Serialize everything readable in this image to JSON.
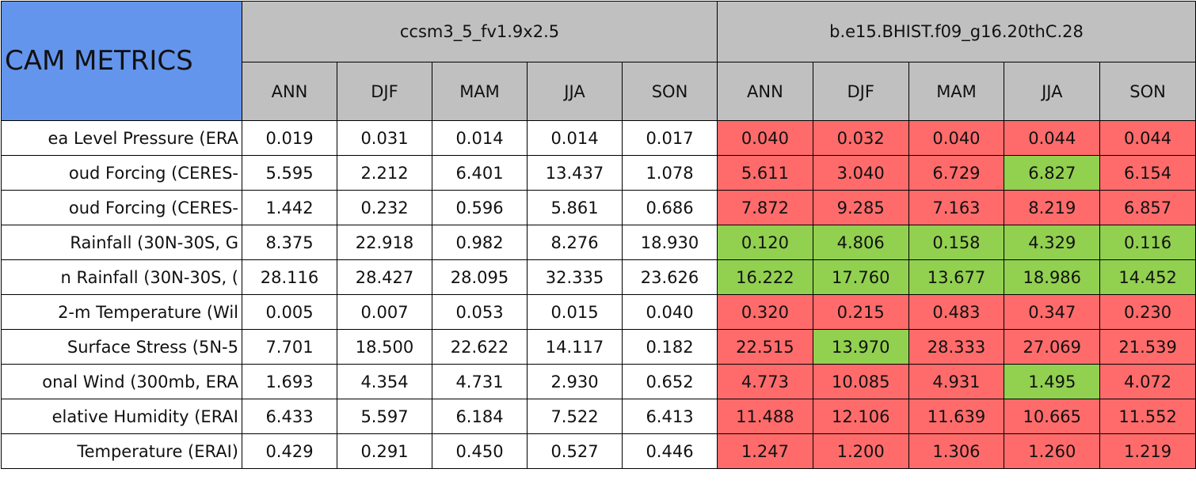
{
  "header": {
    "title": "CAM METRICS",
    "groups": [
      "ccsm3_5_fv1.9x2.5",
      "b.e15.BHIST.f09_g16.20thC.28"
    ],
    "seasons": [
      "ANN",
      "DJF",
      "MAM",
      "JJA",
      "SON"
    ]
  },
  "colors": {
    "title_fill": "#6495ed",
    "header_fill": "#c0c0c0",
    "plain_fill": "#ffffff",
    "red": "#ff6b6b",
    "green": "#92d050"
  },
  "table": {
    "rows": [
      {
        "label": "ea Level Pressure (ERA",
        "cells": [
          "0.019",
          "0.031",
          "0.014",
          "0.014",
          "0.017",
          "0.040",
          "0.032",
          "0.040",
          "0.044",
          "0.044"
        ],
        "fills": [
          "red",
          "red",
          "red",
          "red",
          "red"
        ]
      },
      {
        "label": "oud Forcing (CERES-",
        "cells": [
          "5.595",
          "2.212",
          "6.401",
          "13.437",
          "1.078",
          "5.611",
          "3.040",
          "6.729",
          "6.827",
          "6.154"
        ],
        "fills": [
          "red",
          "red",
          "red",
          "green",
          "red"
        ]
      },
      {
        "label": "oud Forcing (CERES-",
        "cells": [
          "1.442",
          "0.232",
          "0.596",
          "5.861",
          "0.686",
          "7.872",
          "9.285",
          "7.163",
          "8.219",
          "6.857"
        ],
        "fills": [
          "red",
          "red",
          "red",
          "red",
          "red"
        ]
      },
      {
        "label": "Rainfall (30N-30S, G",
        "cells": [
          "8.375",
          "22.918",
          "0.982",
          "8.276",
          "18.930",
          "0.120",
          "4.806",
          "0.158",
          "4.329",
          "0.116"
        ],
        "fills": [
          "green",
          "green",
          "green",
          "green",
          "green"
        ]
      },
      {
        "label": "n Rainfall (30N-30S, (",
        "cells": [
          "28.116",
          "28.427",
          "28.095",
          "32.335",
          "23.626",
          "16.222",
          "17.760",
          "13.677",
          "18.986",
          "14.452"
        ],
        "fills": [
          "green",
          "green",
          "green",
          "green",
          "green"
        ]
      },
      {
        "label": "2-m Temperature (Wil",
        "cells": [
          "0.005",
          "0.007",
          "0.053",
          "0.015",
          "0.040",
          "0.320",
          "0.215",
          "0.483",
          "0.347",
          "0.230"
        ],
        "fills": [
          "red",
          "red",
          "red",
          "red",
          "red"
        ]
      },
      {
        "label": "Surface Stress (5N-5",
        "cells": [
          "7.701",
          "18.500",
          "22.622",
          "14.117",
          "0.182",
          "22.515",
          "13.970",
          "28.333",
          "27.069",
          "21.539"
        ],
        "fills": [
          "red",
          "green",
          "red",
          "red",
          "red"
        ]
      },
      {
        "label": "onal Wind (300mb, ERA",
        "cells": [
          "1.693",
          "4.354",
          "4.731",
          "2.930",
          "0.652",
          "4.773",
          "10.085",
          "4.931",
          "1.495",
          "4.072"
        ],
        "fills": [
          "red",
          "red",
          "red",
          "green",
          "red"
        ]
      },
      {
        "label": "elative Humidity (ERAI",
        "cells": [
          "6.433",
          "5.597",
          "6.184",
          "7.522",
          "6.413",
          "11.488",
          "12.106",
          "11.639",
          "10.665",
          "11.552"
        ],
        "fills": [
          "red",
          "red",
          "red",
          "red",
          "red"
        ]
      },
      {
        "label": "Temperature (ERAI)",
        "cells": [
          "0.429",
          "0.291",
          "0.450",
          "0.527",
          "0.446",
          "1.247",
          "1.200",
          "1.306",
          "1.260",
          "1.219"
        ],
        "fills": [
          "red",
          "red",
          "red",
          "red",
          "red"
        ]
      }
    ]
  }
}
